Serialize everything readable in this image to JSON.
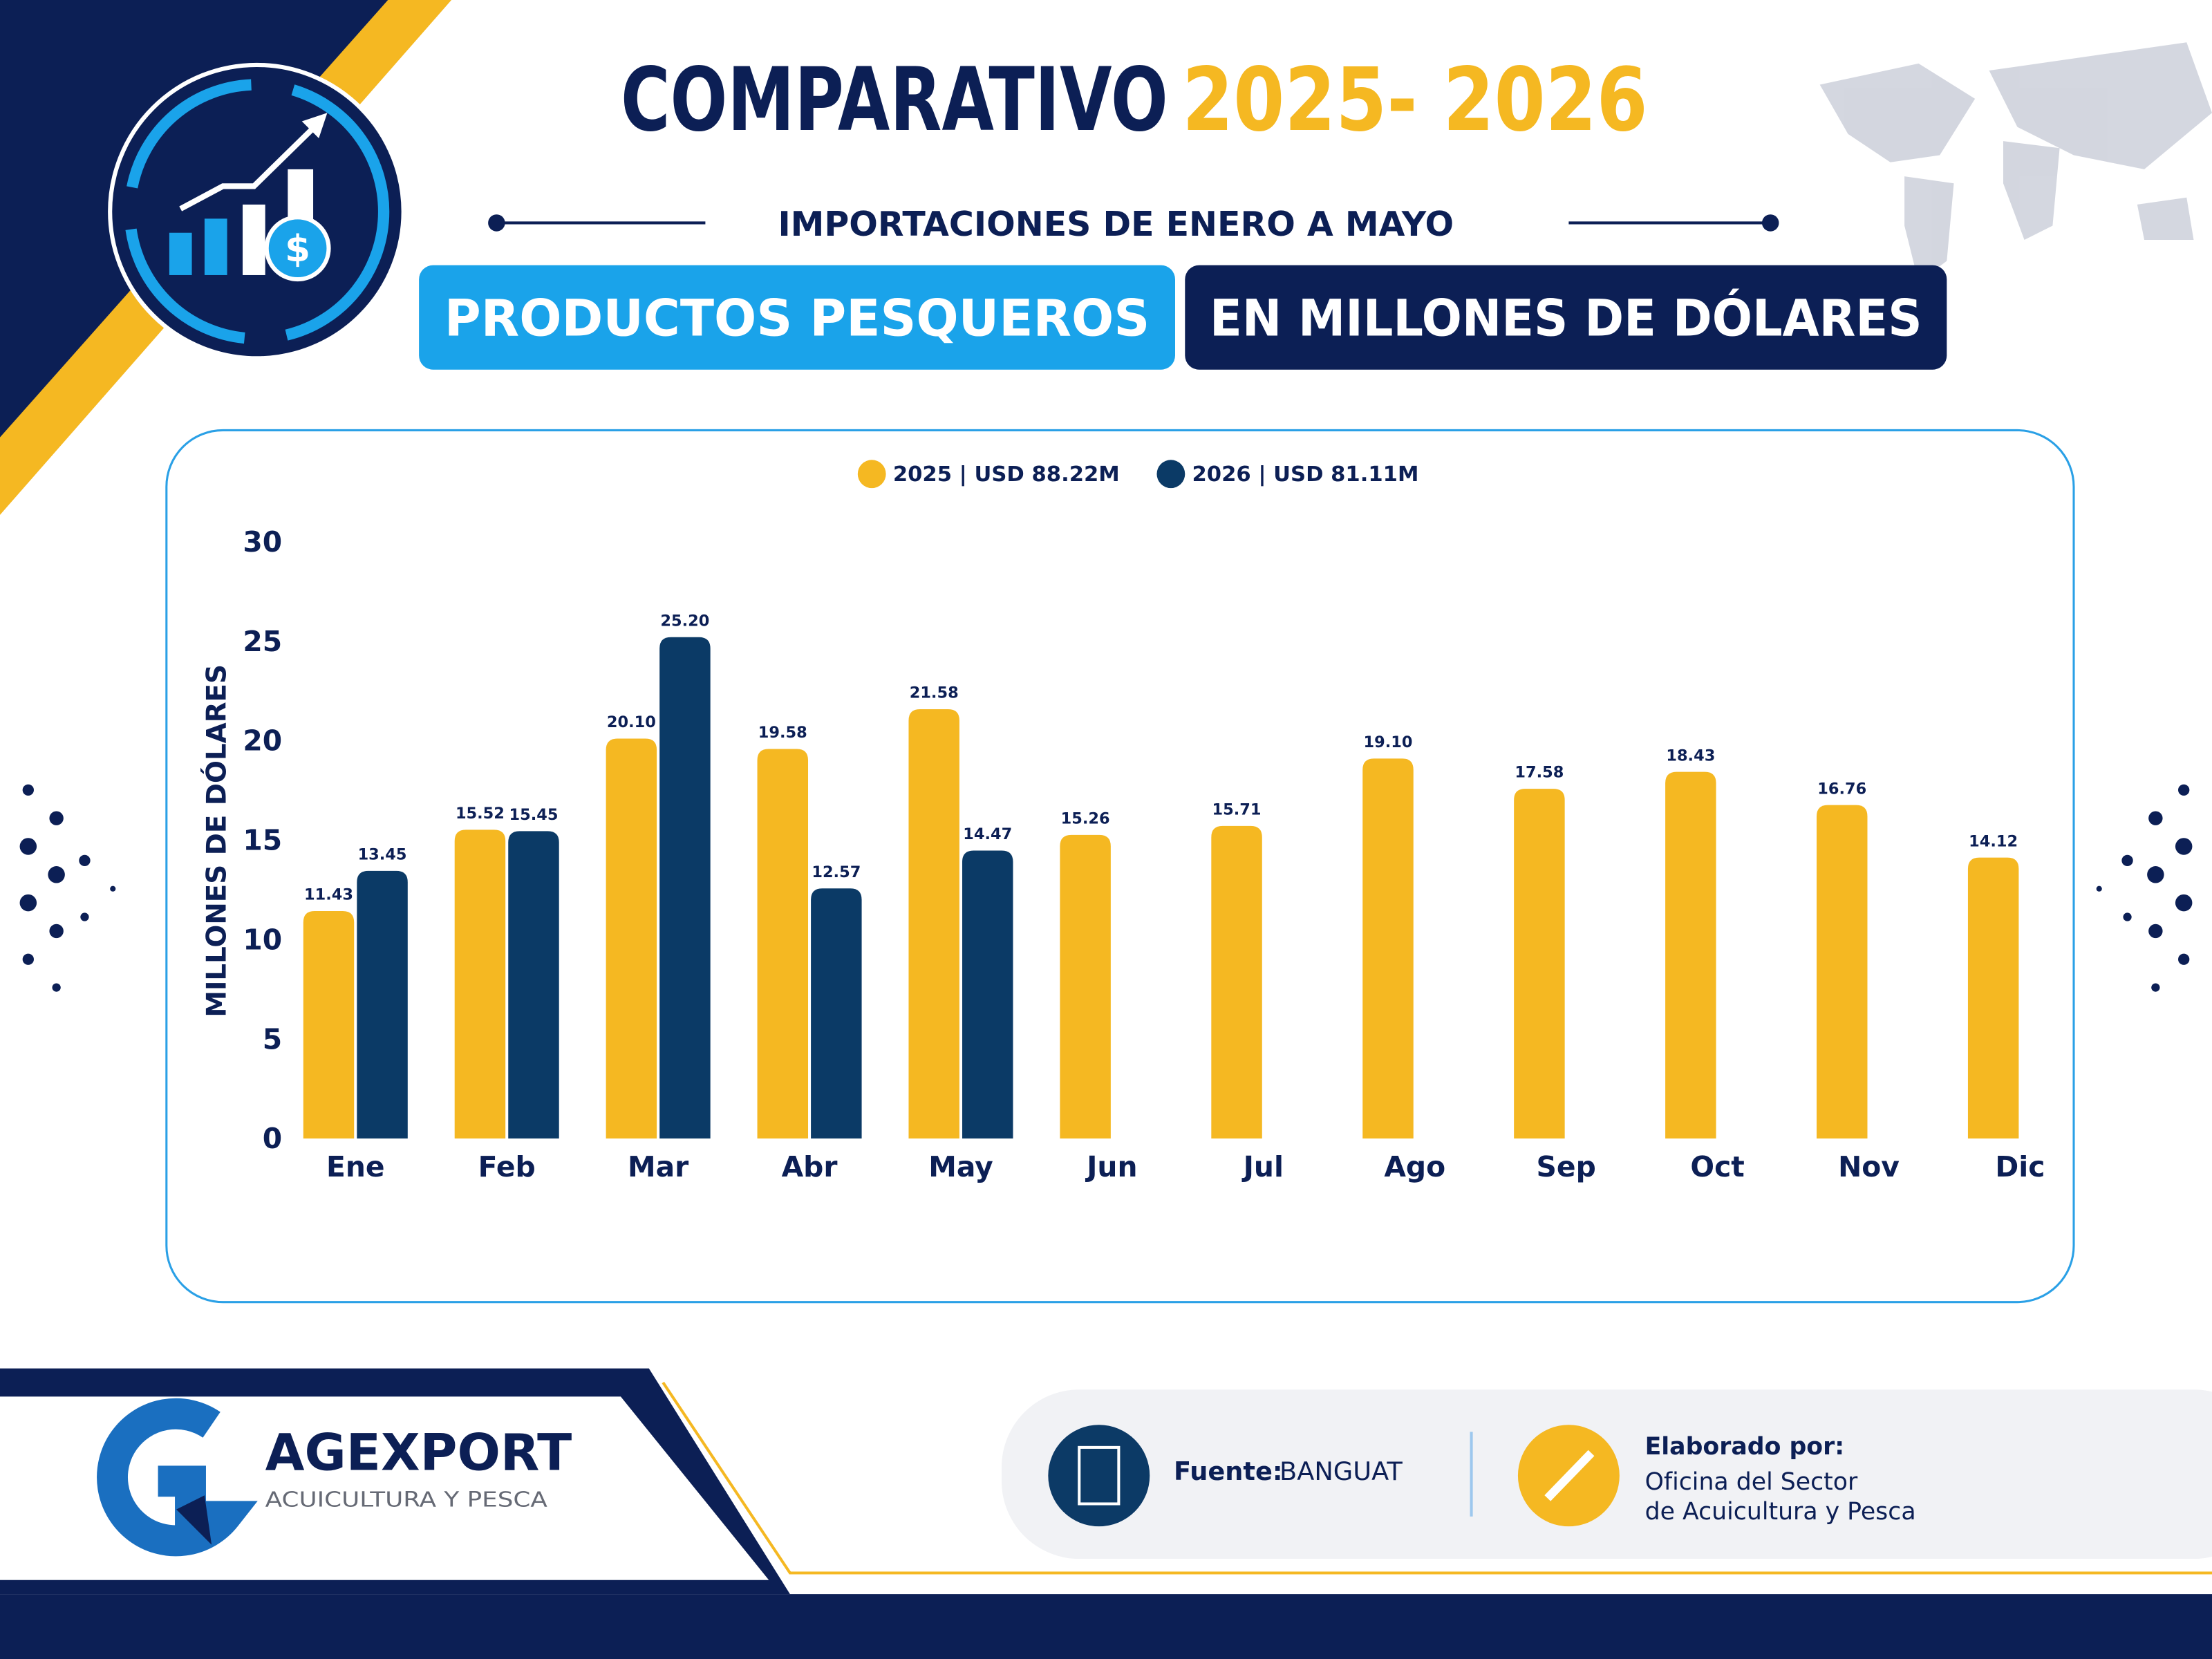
{
  "header": {
    "title_main": "COMPARATIVO",
    "title_years": "2025- 2026",
    "subtitle": "IMPORTACIONES DE ENERO A MAYO",
    "badge_left": "PRODUCTOS PESQUEROS",
    "badge_right": "EN MILLONES DE DÓLARES",
    "icon_symbol": "$"
  },
  "chart_data": {
    "type": "bar",
    "y_label": "MILLONES DE DÓLARES",
    "categories": [
      "Ene",
      "Feb",
      "Mar",
      "Abr",
      "May",
      "Jun",
      "Jul",
      "Ago",
      "Sep",
      "Oct",
      "Nov",
      "Dic"
    ],
    "series": [
      {
        "name": "2025 | USD 88.22M",
        "color": "#f5b822",
        "values": [
          11.43,
          15.52,
          20.1,
          19.58,
          21.58,
          15.26,
          15.71,
          19.1,
          17.58,
          18.43,
          16.76,
          14.12
        ],
        "value_labels": [
          "11.43",
          "15.52",
          "20.10",
          "19.58",
          "21.58",
          "15.26",
          "15.71",
          "19.10",
          "17.58",
          "18.43",
          "16.76",
          "14.12"
        ]
      },
      {
        "name": "2026 | USD 81.11M",
        "color": "#0b3a66",
        "values": [
          13.45,
          15.45,
          25.2,
          12.57,
          14.47,
          null,
          null,
          null,
          null,
          null,
          null,
          null
        ],
        "value_labels": [
          "13.45",
          "15.45",
          "25.20",
          "12.57",
          "14.47",
          null,
          null,
          null,
          null,
          null,
          null,
          null
        ]
      }
    ],
    "ylim": [
      0,
      30
    ],
    "yticks": [
      0,
      5,
      10,
      15,
      20,
      25,
      30
    ],
    "grid": false,
    "legend": "top"
  },
  "footer": {
    "logo_name": "AGEXPORT",
    "logo_sub": "ACUICULTURA Y PESCA",
    "source_label": "Fuente:",
    "source": "BANGUAT",
    "credit_label": "Elaborado por:",
    "credit_line1": "Oficina del Sector",
    "credit_line2": "de Acuicultura y Pesca"
  }
}
